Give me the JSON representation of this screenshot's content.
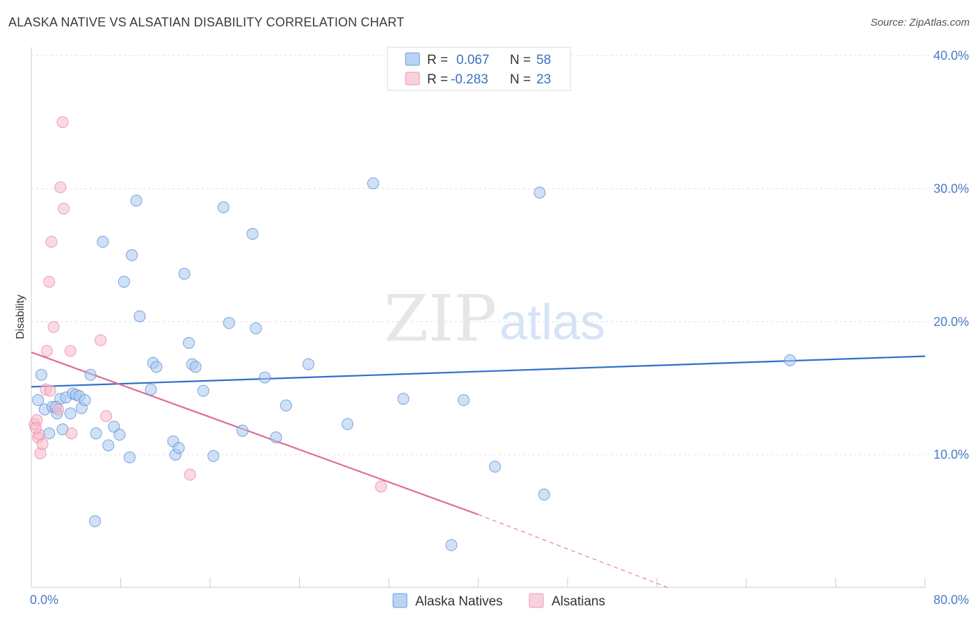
{
  "title": "ALASKA NATIVE VS ALSATIAN DISABILITY CORRELATION CHART",
  "source": "Source: ZipAtlas.com",
  "watermark": {
    "zip": "ZIP",
    "atlas": "atlas"
  },
  "colors": {
    "blue_fill": "#a9c9f0",
    "blue_stroke": "#5a8fd4",
    "blue_line": "#2f6fc9",
    "pink_fill": "#f7b9cc",
    "pink_stroke": "#e389a8",
    "pink_line": "#e06a94",
    "grid": "#dddddd",
    "tick_text": "#4a7cc4"
  },
  "legend": {
    "rows": [
      {
        "r_label": "R =",
        "r_value": "0.067",
        "n_label": "N =",
        "n_value": "58"
      },
      {
        "r_label": "R =",
        "r_value": "-0.283",
        "n_label": "N =",
        "n_value": "23"
      }
    ]
  },
  "bottom_legend": [
    "Alaska Natives",
    "Alsatians"
  ],
  "chart_data": {
    "type": "scatter",
    "xlabel": "",
    "ylabel": "Disability",
    "xlim": [
      0,
      80
    ],
    "ylim": [
      0,
      40
    ],
    "x_tick_labels": [
      "0.0%",
      "80.0%"
    ],
    "y_tick_labels": [
      "10.0%",
      "20.0%",
      "30.0%",
      "40.0%"
    ],
    "y_ticks": [
      10,
      20,
      30,
      40
    ],
    "grid": true,
    "series": [
      {
        "name": "Alaska Natives",
        "color": "#a9c9f0",
        "points": [
          [
            0.6,
            14.1
          ],
          [
            0.9,
            16.0
          ],
          [
            1.2,
            13.4
          ],
          [
            1.6,
            11.6
          ],
          [
            1.9,
            13.6
          ],
          [
            2.3,
            13.1
          ],
          [
            2.6,
            14.2
          ],
          [
            2.8,
            11.9
          ],
          [
            3.1,
            14.3
          ],
          [
            3.5,
            13.1
          ],
          [
            3.7,
            14.6
          ],
          [
            4.0,
            14.5
          ],
          [
            4.3,
            14.4
          ],
          [
            4.5,
            13.5
          ],
          [
            4.8,
            14.1
          ],
          [
            5.3,
            16.0
          ],
          [
            5.8,
            11.6
          ],
          [
            6.4,
            26.0
          ],
          [
            6.9,
            10.7
          ],
          [
            7.4,
            12.1
          ],
          [
            7.9,
            11.5
          ],
          [
            8.3,
            23.0
          ],
          [
            8.8,
            9.8
          ],
          [
            9.0,
            25.0
          ],
          [
            9.4,
            29.1
          ],
          [
            9.7,
            20.4
          ],
          [
            10.7,
            14.9
          ],
          [
            10.9,
            16.9
          ],
          [
            11.2,
            16.6
          ],
          [
            12.7,
            11.0
          ],
          [
            12.9,
            10.0
          ],
          [
            13.2,
            10.5
          ],
          [
            13.7,
            23.6
          ],
          [
            14.1,
            18.4
          ],
          [
            14.4,
            16.8
          ],
          [
            14.7,
            16.6
          ],
          [
            15.4,
            14.8
          ],
          [
            16.3,
            9.9
          ],
          [
            17.2,
            28.6
          ],
          [
            17.7,
            19.9
          ],
          [
            18.9,
            11.8
          ],
          [
            19.8,
            26.6
          ],
          [
            20.1,
            19.5
          ],
          [
            20.9,
            15.8
          ],
          [
            21.9,
            11.3
          ],
          [
            22.8,
            13.7
          ],
          [
            24.8,
            16.8
          ],
          [
            28.3,
            12.3
          ],
          [
            30.6,
            30.4
          ],
          [
            33.3,
            14.2
          ],
          [
            37.6,
            3.2
          ],
          [
            38.7,
            14.1
          ],
          [
            41.5,
            9.1
          ],
          [
            45.5,
            29.7
          ],
          [
            45.9,
            7.0
          ],
          [
            67.9,
            17.1
          ],
          [
            5.7,
            5.0
          ],
          [
            2.2,
            13.6
          ]
        ]
      },
      {
        "name": "Alsatians",
        "color": "#f7b9cc",
        "points": [
          [
            0.3,
            12.3
          ],
          [
            0.5,
            12.6
          ],
          [
            0.6,
            11.3
          ],
          [
            0.7,
            11.5
          ],
          [
            0.8,
            10.1
          ],
          [
            1.0,
            10.8
          ],
          [
            1.3,
            14.9
          ],
          [
            1.4,
            17.8
          ],
          [
            1.6,
            23.0
          ],
          [
            1.8,
            26.0
          ],
          [
            2.0,
            19.6
          ],
          [
            2.4,
            13.4
          ],
          [
            2.6,
            30.1
          ],
          [
            2.8,
            35.0
          ],
          [
            2.9,
            28.5
          ],
          [
            3.5,
            17.8
          ],
          [
            3.6,
            11.6
          ],
          [
            6.2,
            18.6
          ],
          [
            6.7,
            12.9
          ],
          [
            14.2,
            8.5
          ],
          [
            31.3,
            7.6
          ],
          [
            1.7,
            14.8
          ],
          [
            0.4,
            12.0
          ]
        ]
      }
    ],
    "trend_lines": [
      {
        "series": "Alaska Natives",
        "x": [
          0,
          80
        ],
        "y": [
          15.1,
          17.4
        ],
        "style": "solid"
      },
      {
        "series": "Alsatians",
        "x": [
          0,
          40
        ],
        "y": [
          17.7,
          5.5
        ],
        "style": "solid"
      },
      {
        "series": "Alsatians",
        "x": [
          40,
          57
        ],
        "y": [
          5.5,
          0.0
        ],
        "style": "dashed"
      }
    ]
  }
}
